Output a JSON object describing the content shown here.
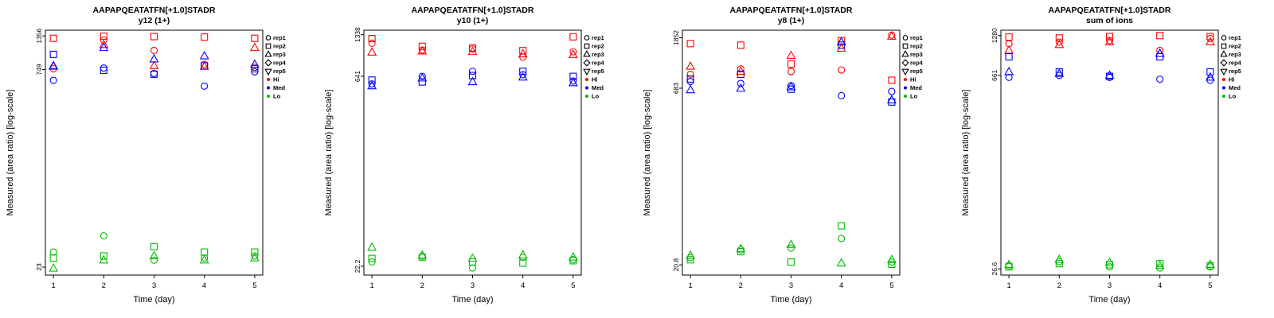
{
  "figure": {
    "background": "#FFFFFF",
    "ylabel": "Measured (area ratio) [log-scale]",
    "xlabel": "Time (day)",
    "peptide": "AAPAPQEATATFN[+1.0]STADR",
    "colors": {
      "Hi": "#FF0000",
      "Med": "#0000FF",
      "Lo": "#00BB00"
    },
    "legend": {
      "reps": [
        {
          "label": "rep1",
          "marker": "circle"
        },
        {
          "label": "rep2",
          "marker": "square"
        },
        {
          "label": "rep3",
          "marker": "triangle-up"
        },
        {
          "label": "rep4",
          "marker": "diamond"
        },
        {
          "label": "rep5",
          "marker": "triangle-down"
        }
      ],
      "levels": [
        {
          "label": "Hi",
          "color": "#FF0000"
        },
        {
          "label": "Med",
          "color": "#0000FF"
        },
        {
          "label": "Lo",
          "color": "#00BB00"
        }
      ]
    }
  },
  "chart_data": [
    {
      "type": "scatter",
      "title": "AAPAPQEATATFN[+1.0]STADR",
      "subtitle": "y12 (1+)",
      "xlabel": "Time (day)",
      "ylabel": "Measured (area ratio) [log-scale]",
      "y_scale": "log",
      "x_ticks": [
        1,
        2,
        3,
        4,
        5
      ],
      "y_ticks": [
        {
          "label": "1356",
          "value": 1356
        },
        {
          "label": "749",
          "value": 749
        },
        {
          "label": "23",
          "value": 23
        }
      ],
      "xlim": [
        0.84,
        5.16
      ],
      "ylim": [
        20,
        1500
      ],
      "points_format": [
        "day",
        "value",
        "rep",
        "level"
      ],
      "points": [
        [
          1,
          760,
          1,
          "Hi"
        ],
        [
          1,
          1300,
          2,
          "Hi"
        ],
        [
          1,
          790,
          3,
          "Hi"
        ],
        [
          2,
          1260,
          1,
          "Hi"
        ],
        [
          2,
          1350,
          2,
          "Hi"
        ],
        [
          2,
          1160,
          3,
          "Hi"
        ],
        [
          3,
          1050,
          1,
          "Hi"
        ],
        [
          3,
          1340,
          2,
          "Hi"
        ],
        [
          3,
          800,
          3,
          "Hi"
        ],
        [
          4,
          820,
          1,
          "Hi"
        ],
        [
          4,
          1330,
          2,
          "Hi"
        ],
        [
          4,
          790,
          3,
          "Hi"
        ],
        [
          5,
          780,
          1,
          "Hi"
        ],
        [
          5,
          1300,
          2,
          "Hi"
        ],
        [
          5,
          1100,
          3,
          "Hi"
        ],
        [
          1,
          620,
          1,
          "Med"
        ],
        [
          1,
          980,
          2,
          "Med"
        ],
        [
          1,
          800,
          3,
          "Med"
        ],
        [
          2,
          770,
          1,
          "Med"
        ],
        [
          2,
          740,
          2,
          "Med"
        ],
        [
          2,
          1100,
          3,
          "Med"
        ],
        [
          3,
          700,
          1,
          "Med"
        ],
        [
          3,
          690,
          2,
          "Med"
        ],
        [
          3,
          900,
          3,
          "Med"
        ],
        [
          4,
          560,
          1,
          "Med"
        ],
        [
          4,
          800,
          2,
          "Med"
        ],
        [
          4,
          950,
          3,
          "Med"
        ],
        [
          5,
          720,
          1,
          "Med"
        ],
        [
          5,
          760,
          2,
          "Med"
        ],
        [
          5,
          820,
          3,
          "Med"
        ],
        [
          1,
          30,
          1,
          "Lo"
        ],
        [
          1,
          27,
          2,
          "Lo"
        ],
        [
          1,
          22.5,
          3,
          "Lo"
        ],
        [
          2,
          40,
          1,
          "Lo"
        ],
        [
          2,
          28,
          2,
          "Lo"
        ],
        [
          2,
          26,
          3,
          "Lo"
        ],
        [
          3,
          26,
          1,
          "Lo"
        ],
        [
          3,
          33,
          2,
          "Lo"
        ],
        [
          3,
          28,
          3,
          "Lo"
        ],
        [
          4,
          27,
          1,
          "Lo"
        ],
        [
          4,
          30,
          2,
          "Lo"
        ],
        [
          4,
          26,
          3,
          "Lo"
        ],
        [
          5,
          28,
          1,
          "Lo"
        ],
        [
          5,
          30,
          2,
          "Lo"
        ],
        [
          5,
          27,
          3,
          "Lo"
        ]
      ]
    },
    {
      "type": "scatter",
      "title": "AAPAPQEATATFN[+1.0]STADR",
      "subtitle": "y10 (1+)",
      "xlabel": "Time (day)",
      "ylabel": "Measured (area ratio) [log-scale]",
      "y_scale": "log",
      "x_ticks": [
        1,
        2,
        3,
        4,
        5
      ],
      "y_ticks": [
        {
          "label": "1338",
          "value": 1338
        },
        {
          "label": "641",
          "value": 641
        },
        {
          "label": "22.2",
          "value": 22.2
        }
      ],
      "xlim": [
        0.84,
        5.16
      ],
      "ylim": [
        19,
        1450
      ],
      "points_format": [
        "day",
        "value",
        "rep",
        "level"
      ],
      "points": [
        [
          1,
          1150,
          1,
          "Hi"
        ],
        [
          1,
          1250,
          2,
          "Hi"
        ],
        [
          1,
          980,
          3,
          "Hi"
        ],
        [
          2,
          1020,
          1,
          "Hi"
        ],
        [
          2,
          1090,
          2,
          "Hi"
        ],
        [
          2,
          1000,
          3,
          "Hi"
        ],
        [
          3,
          1040,
          1,
          "Hi"
        ],
        [
          3,
          1060,
          2,
          "Hi"
        ],
        [
          3,
          990,
          3,
          "Hi"
        ],
        [
          4,
          900,
          1,
          "Hi"
        ],
        [
          4,
          1010,
          2,
          "Hi"
        ],
        [
          4,
          950,
          3,
          "Hi"
        ],
        [
          5,
          990,
          1,
          "Hi"
        ],
        [
          5,
          1290,
          2,
          "Hi"
        ],
        [
          5,
          940,
          3,
          "Hi"
        ],
        [
          1,
          560,
          1,
          "Med"
        ],
        [
          1,
          600,
          2,
          "Med"
        ],
        [
          1,
          540,
          3,
          "Med"
        ],
        [
          2,
          640,
          1,
          "Med"
        ],
        [
          2,
          580,
          2,
          "Med"
        ],
        [
          2,
          620,
          3,
          "Med"
        ],
        [
          3,
          700,
          1,
          "Med"
        ],
        [
          3,
          650,
          2,
          "Med"
        ],
        [
          3,
          580,
          3,
          "Med"
        ],
        [
          4,
          660,
          1,
          "Med"
        ],
        [
          4,
          700,
          2,
          "Med"
        ],
        [
          4,
          630,
          3,
          "Med"
        ],
        [
          5,
          590,
          1,
          "Med"
        ],
        [
          5,
          640,
          2,
          "Med"
        ],
        [
          5,
          570,
          3,
          "Med"
        ],
        [
          1,
          24,
          1,
          "Lo"
        ],
        [
          1,
          25.5,
          2,
          "Lo"
        ],
        [
          1,
          31,
          3,
          "Lo"
        ],
        [
          2,
          26.5,
          1,
          "Lo"
        ],
        [
          2,
          26,
          2,
          "Lo"
        ],
        [
          2,
          27,
          3,
          "Lo"
        ],
        [
          3,
          21.5,
          1,
          "Lo"
        ],
        [
          3,
          24,
          2,
          "Lo"
        ],
        [
          3,
          25.5,
          3,
          "Lo"
        ],
        [
          4,
          26,
          1,
          "Lo"
        ],
        [
          4,
          23.5,
          2,
          "Lo"
        ],
        [
          4,
          27,
          3,
          "Lo"
        ],
        [
          5,
          25,
          1,
          "Lo"
        ],
        [
          5,
          24.5,
          2,
          "Lo"
        ],
        [
          5,
          26,
          3,
          "Lo"
        ]
      ]
    },
    {
      "type": "scatter",
      "title": "AAPAPQEATATFN[+1.0]STADR",
      "subtitle": "y8 (1+)",
      "xlabel": "Time (day)",
      "ylabel": "Measured (area ratio) [log-scale]",
      "y_scale": "log",
      "x_ticks": [
        1,
        2,
        3,
        4,
        5
      ],
      "y_ticks": [
        {
          "label": "1852",
          "value": 1852
        },
        {
          "label": "683",
          "value": 683
        },
        {
          "label": "20.8",
          "value": 20.8
        }
      ],
      "xlim": [
        0.84,
        5.16
      ],
      "ylim": [
        17,
        2150
      ],
      "points_format": [
        "day",
        "value",
        "rep",
        "level"
      ],
      "points": [
        [
          1,
          900,
          1,
          "Hi"
        ],
        [
          1,
          1650,
          2,
          "Hi"
        ],
        [
          1,
          1050,
          3,
          "Hi"
        ],
        [
          2,
          1000,
          1,
          "Hi"
        ],
        [
          2,
          1600,
          2,
          "Hi"
        ],
        [
          2,
          950,
          3,
          "Hi"
        ],
        [
          3,
          950,
          1,
          "Hi"
        ],
        [
          3,
          1100,
          2,
          "Hi"
        ],
        [
          3,
          1300,
          3,
          "Hi"
        ],
        [
          4,
          980,
          1,
          "Hi"
        ],
        [
          4,
          1750,
          2,
          "Hi"
        ],
        [
          4,
          1500,
          3,
          "Hi"
        ],
        [
          5,
          1950,
          1,
          "Hi"
        ],
        [
          5,
          800,
          2,
          "Hi"
        ],
        [
          5,
          1900,
          3,
          "Hi"
        ],
        [
          1,
          780,
          1,
          "Med"
        ],
        [
          1,
          820,
          2,
          "Med"
        ],
        [
          1,
          660,
          3,
          "Med"
        ],
        [
          2,
          750,
          1,
          "Med"
        ],
        [
          2,
          900,
          2,
          "Med"
        ],
        [
          2,
          680,
          3,
          "Med"
        ],
        [
          3,
          720,
          1,
          "Med"
        ],
        [
          3,
          670,
          2,
          "Med"
        ],
        [
          3,
          700,
          3,
          "Med"
        ],
        [
          4,
          590,
          1,
          "Med"
        ],
        [
          4,
          1600,
          2,
          "Med"
        ],
        [
          4,
          1700,
          3,
          "Med"
        ],
        [
          5,
          640,
          1,
          "Med"
        ],
        [
          5,
          520,
          2,
          "Med"
        ],
        [
          5,
          540,
          3,
          "Med"
        ],
        [
          1,
          24,
          1,
          "Lo"
        ],
        [
          1,
          23,
          2,
          "Lo"
        ],
        [
          1,
          25,
          3,
          "Lo"
        ],
        [
          2,
          28,
          1,
          "Lo"
        ],
        [
          2,
          27,
          2,
          "Lo"
        ],
        [
          2,
          28.5,
          3,
          "Lo"
        ],
        [
          3,
          29,
          1,
          "Lo"
        ],
        [
          3,
          22,
          2,
          "Lo"
        ],
        [
          3,
          31,
          3,
          "Lo"
        ],
        [
          4,
          35,
          1,
          "Lo"
        ],
        [
          4,
          45,
          2,
          "Lo"
        ],
        [
          4,
          21.5,
          3,
          "Lo"
        ],
        [
          5,
          22,
          1,
          "Lo"
        ],
        [
          5,
          21,
          2,
          "Lo"
        ],
        [
          5,
          23,
          3,
          "Lo"
        ]
      ]
    },
    {
      "type": "scatter",
      "title": "AAPAPQEATATFN[+1.0]STADR",
      "subtitle": "sum of ions",
      "xlabel": "Time (day)",
      "ylabel": "Measured (area ratio) [log-scale]",
      "y_scale": "log",
      "x_ticks": [
        1,
        2,
        3,
        4,
        5
      ],
      "y_ticks": [
        {
          "label": "1280",
          "value": 1280
        },
        {
          "label": "661",
          "value": 661
        },
        {
          "label": "26.6",
          "value": 26.6
        }
      ],
      "xlim": [
        0.84,
        5.16
      ],
      "ylim": [
        24,
        1400
      ],
      "points_format": [
        "day",
        "value",
        "rep",
        "level"
      ],
      "points": [
        [
          1,
          1120,
          1,
          "Hi"
        ],
        [
          1,
          1250,
          2,
          "Hi"
        ],
        [
          1,
          1000,
          3,
          "Hi"
        ],
        [
          2,
          1150,
          1,
          "Hi"
        ],
        [
          2,
          1230,
          2,
          "Hi"
        ],
        [
          2,
          1100,
          3,
          "Hi"
        ],
        [
          3,
          1180,
          1,
          "Hi"
        ],
        [
          3,
          1260,
          2,
          "Hi"
        ],
        [
          3,
          1150,
          3,
          "Hi"
        ],
        [
          4,
          1000,
          1,
          "Hi"
        ],
        [
          4,
          1280,
          2,
          "Hi"
        ],
        [
          4,
          950,
          3,
          "Hi"
        ],
        [
          5,
          1220,
          1,
          "Hi"
        ],
        [
          5,
          1260,
          2,
          "Hi"
        ],
        [
          5,
          1150,
          3,
          "Hi"
        ],
        [
          1,
          640,
          1,
          "Med"
        ],
        [
          1,
          900,
          2,
          "Med"
        ],
        [
          1,
          700,
          3,
          "Med"
        ],
        [
          2,
          660,
          1,
          "Med"
        ],
        [
          2,
          700,
          2,
          "Med"
        ],
        [
          2,
          680,
          3,
          "Med"
        ],
        [
          3,
          640,
          1,
          "Med"
        ],
        [
          3,
          650,
          2,
          "Med"
        ],
        [
          3,
          660,
          3,
          "Med"
        ],
        [
          4,
          620,
          1,
          "Med"
        ],
        [
          4,
          900,
          2,
          "Med"
        ],
        [
          4,
          950,
          3,
          "Med"
        ],
        [
          5,
          610,
          1,
          "Med"
        ],
        [
          5,
          700,
          2,
          "Med"
        ],
        [
          5,
          640,
          3,
          "Med"
        ],
        [
          1,
          28,
          1,
          "Lo"
        ],
        [
          1,
          27.5,
          2,
          "Lo"
        ],
        [
          1,
          28.5,
          3,
          "Lo"
        ],
        [
          2,
          30,
          1,
          "Lo"
        ],
        [
          2,
          29,
          2,
          "Lo"
        ],
        [
          2,
          31,
          3,
          "Lo"
        ],
        [
          3,
          27.5,
          1,
          "Lo"
        ],
        [
          3,
          28.5,
          2,
          "Lo"
        ],
        [
          3,
          29.5,
          3,
          "Lo"
        ],
        [
          4,
          27,
          1,
          "Lo"
        ],
        [
          4,
          29,
          2,
          "Lo"
        ],
        [
          4,
          28,
          3,
          "Lo"
        ],
        [
          5,
          27.5,
          1,
          "Lo"
        ],
        [
          5,
          28,
          2,
          "Lo"
        ],
        [
          5,
          28.5,
          3,
          "Lo"
        ]
      ]
    }
  ]
}
